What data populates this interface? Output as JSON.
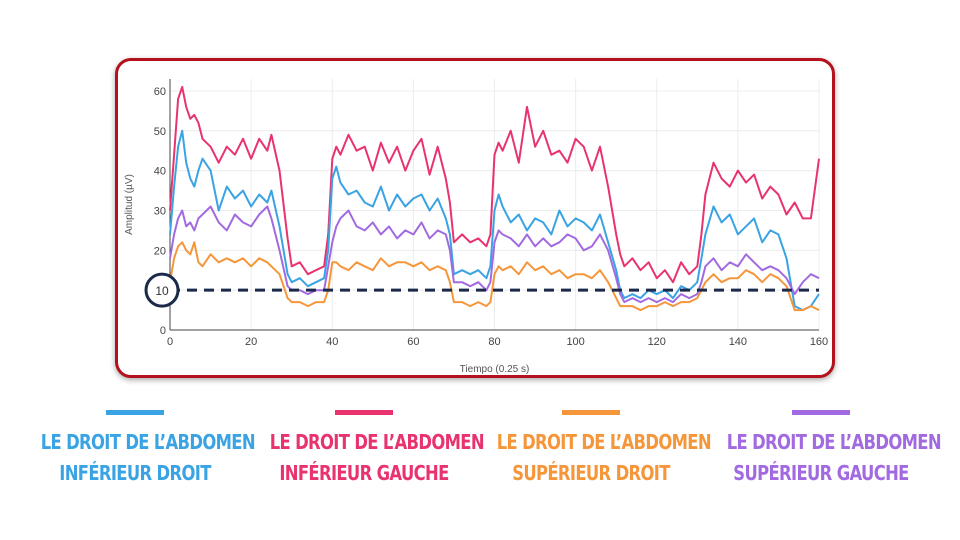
{
  "chart_data": {
    "type": "line",
    "xlabel": "Tiempo (0.25 s)",
    "ylabel": "Amplitud (µV)",
    "xlim": [
      0,
      160
    ],
    "ylim": [
      0,
      63
    ],
    "xticks": [
      0,
      20,
      40,
      60,
      80,
      100,
      120,
      140,
      160
    ],
    "yticks": [
      0,
      10,
      20,
      30,
      40,
      50,
      60
    ],
    "threshold": {
      "value": 10,
      "label": "10",
      "color": "#1b2a4a"
    },
    "series": [
      {
        "name": "LE DROIT DE L’ABDOMEN INFÉRIEUR GAUCHE",
        "color": "#e8336f",
        "x": [
          0,
          1,
          2,
          3,
          4,
          5,
          6,
          7,
          8,
          10,
          12,
          14,
          16,
          18,
          20,
          22,
          24,
          25,
          27,
          29,
          30,
          32,
          34,
          36,
          38,
          39,
          40,
          41,
          42,
          44,
          46,
          48,
          50,
          52,
          54,
          56,
          58,
          60,
          62,
          64,
          66,
          68,
          69,
          70,
          72,
          74,
          76,
          78,
          79,
          80,
          81,
          82,
          84,
          86,
          88,
          90,
          92,
          94,
          96,
          98,
          100,
          102,
          104,
          106,
          108,
          110,
          111,
          112,
          114,
          116,
          118,
          120,
          122,
          124,
          126,
          128,
          130,
          131,
          132,
          134,
          136,
          138,
          140,
          142,
          144,
          146,
          148,
          150,
          152,
          154,
          156,
          158,
          160
        ],
        "y": [
          30,
          44,
          58,
          61,
          56,
          53,
          54,
          52,
          48,
          46,
          42,
          46,
          44,
          48,
          43,
          48,
          45,
          49,
          40,
          23,
          16,
          17,
          14,
          15,
          16,
          24,
          43,
          46,
          44,
          49,
          45,
          46,
          40,
          47,
          42,
          46,
          40,
          45,
          48,
          39,
          46,
          38,
          32,
          22,
          24,
          22,
          23,
          21,
          24,
          44,
          47,
          45,
          50,
          42,
          56,
          46,
          50,
          44,
          45,
          42,
          48,
          46,
          40,
          46,
          36,
          24,
          19,
          16,
          18,
          15,
          17,
          13,
          15,
          12,
          17,
          14,
          16,
          24,
          34,
          42,
          38,
          36,
          40,
          37,
          39,
          33,
          36,
          34,
          29,
          32,
          28,
          28,
          43
        ]
      },
      {
        "name": "LE DROIT DE L’ABDOMEN INFÉRIEUR DROIT",
        "color": "#3aa3e3",
        "x": [
          0,
          1,
          2,
          3,
          4,
          5,
          6,
          7,
          8,
          10,
          12,
          14,
          16,
          18,
          20,
          22,
          24,
          25,
          27,
          29,
          30,
          32,
          34,
          36,
          38,
          39,
          40,
          41,
          42,
          44,
          46,
          48,
          50,
          52,
          54,
          56,
          58,
          60,
          62,
          64,
          66,
          68,
          69,
          70,
          72,
          74,
          76,
          78,
          79,
          80,
          81,
          82,
          84,
          86,
          88,
          90,
          92,
          94,
          96,
          98,
          100,
          102,
          104,
          106,
          108,
          110,
          111,
          112,
          114,
          116,
          118,
          120,
          122,
          124,
          126,
          128,
          130,
          131,
          132,
          134,
          136,
          138,
          140,
          142,
          144,
          146,
          148,
          150,
          152,
          154,
          156,
          158,
          160
        ],
        "y": [
          24,
          36,
          46,
          50,
          42,
          38,
          36,
          40,
          43,
          40,
          30,
          36,
          33,
          35,
          31,
          34,
          32,
          35,
          26,
          14,
          12,
          13,
          11,
          12,
          13,
          20,
          38,
          41,
          37,
          34,
          35,
          32,
          31,
          36,
          30,
          34,
          31,
          33,
          34,
          30,
          33,
          28,
          24,
          14,
          15,
          14,
          15,
          13,
          16,
          30,
          34,
          31,
          27,
          29,
          25,
          28,
          27,
          24,
          30,
          26,
          28,
          27,
          25,
          29,
          22,
          15,
          10,
          8,
          9,
          8,
          10,
          9,
          10,
          8,
          11,
          10,
          12,
          18,
          24,
          31,
          27,
          29,
          24,
          26,
          28,
          22,
          25,
          24,
          18,
          6,
          5,
          6,
          9
        ]
      },
      {
        "name": "LE DROIT DE L’ABDOMEN SUPÉRIEUR GAUCHE",
        "color": "#a26ae0",
        "x": [
          0,
          1,
          2,
          3,
          4,
          5,
          6,
          7,
          8,
          10,
          12,
          14,
          16,
          18,
          20,
          22,
          24,
          25,
          27,
          29,
          30,
          32,
          34,
          36,
          38,
          39,
          40,
          41,
          42,
          44,
          46,
          48,
          50,
          52,
          54,
          56,
          58,
          60,
          62,
          64,
          66,
          68,
          69,
          70,
          72,
          74,
          76,
          78,
          79,
          80,
          81,
          82,
          84,
          86,
          88,
          90,
          92,
          94,
          96,
          98,
          100,
          102,
          104,
          106,
          108,
          110,
          111,
          112,
          114,
          116,
          118,
          120,
          122,
          124,
          126,
          128,
          130,
          131,
          132,
          134,
          136,
          138,
          140,
          142,
          144,
          146,
          148,
          150,
          152,
          154,
          156,
          158,
          160
        ],
        "y": [
          18,
          24,
          28,
          30,
          26,
          27,
          25,
          28,
          29,
          31,
          27,
          25,
          29,
          27,
          26,
          29,
          31,
          28,
          20,
          11,
          10,
          10,
          9,
          10,
          10,
          16,
          22,
          26,
          28,
          30,
          26,
          25,
          27,
          24,
          26,
          23,
          25,
          24,
          27,
          23,
          25,
          24,
          20,
          12,
          12,
          11,
          12,
          10,
          12,
          22,
          25,
          24,
          23,
          21,
          24,
          21,
          23,
          21,
          22,
          24,
          23,
          20,
          21,
          24,
          20,
          13,
          9,
          7,
          8,
          7,
          8,
          7,
          8,
          7,
          9,
          8,
          9,
          12,
          16,
          18,
          15,
          17,
          16,
          19,
          17,
          15,
          16,
          15,
          13,
          9,
          12,
          14,
          13
        ]
      },
      {
        "name": "LE DROIT DE L’ABDOMEN SUPÉRIEUR DROIT",
        "color": "#f5963a",
        "x": [
          0,
          1,
          2,
          3,
          4,
          5,
          6,
          7,
          8,
          10,
          12,
          14,
          16,
          18,
          20,
          22,
          24,
          25,
          27,
          29,
          30,
          32,
          34,
          36,
          38,
          39,
          40,
          41,
          42,
          44,
          46,
          48,
          50,
          52,
          54,
          56,
          58,
          60,
          62,
          64,
          66,
          68,
          69,
          70,
          72,
          74,
          76,
          78,
          79,
          80,
          81,
          82,
          84,
          86,
          88,
          90,
          92,
          94,
          96,
          98,
          100,
          102,
          104,
          106,
          108,
          110,
          111,
          112,
          114,
          116,
          118,
          120,
          122,
          124,
          126,
          128,
          130,
          131,
          132,
          134,
          136,
          138,
          140,
          142,
          144,
          146,
          148,
          150,
          152,
          154,
          156,
          158,
          160
        ],
        "y": [
          12,
          18,
          21,
          22,
          20,
          19,
          22,
          17,
          16,
          19,
          17,
          18,
          17,
          18,
          16,
          18,
          17,
          16,
          14,
          8,
          7,
          7,
          6,
          7,
          7,
          10,
          17,
          17,
          16,
          15,
          17,
          16,
          15,
          18,
          16,
          17,
          17,
          16,
          17,
          15,
          16,
          15,
          12,
          7,
          7,
          6,
          7,
          6,
          7,
          14,
          16,
          15,
          16,
          14,
          17,
          15,
          16,
          14,
          15,
          13,
          14,
          14,
          13,
          15,
          12,
          8,
          6,
          6,
          6,
          5,
          6,
          6,
          7,
          6,
          7,
          7,
          8,
          10,
          12,
          14,
          12,
          13,
          13,
          15,
          14,
          12,
          14,
          13,
          11,
          5,
          5,
          6,
          5
        ]
      }
    ]
  },
  "legend": [
    {
      "line1": "LE DROIT DE L’ABDOMEN",
      "line2": "INFÉRIEUR DROIT",
      "color": "#3aa3e3"
    },
    {
      "line1": "LE DROIT DE L’ABDOMEN",
      "line2": "INFÉRIEUR GAUCHE",
      "color": "#e8336f"
    },
    {
      "line1": "LE DROIT DE L’ABDOMEN",
      "line2": "SUPÉRIEUR DROIT",
      "color": "#f5963a"
    },
    {
      "line1": "LE DROIT DE L’ABDOMEN",
      "line2": "SUPÉRIEUR GAUCHE",
      "color": "#a26ae0"
    }
  ]
}
